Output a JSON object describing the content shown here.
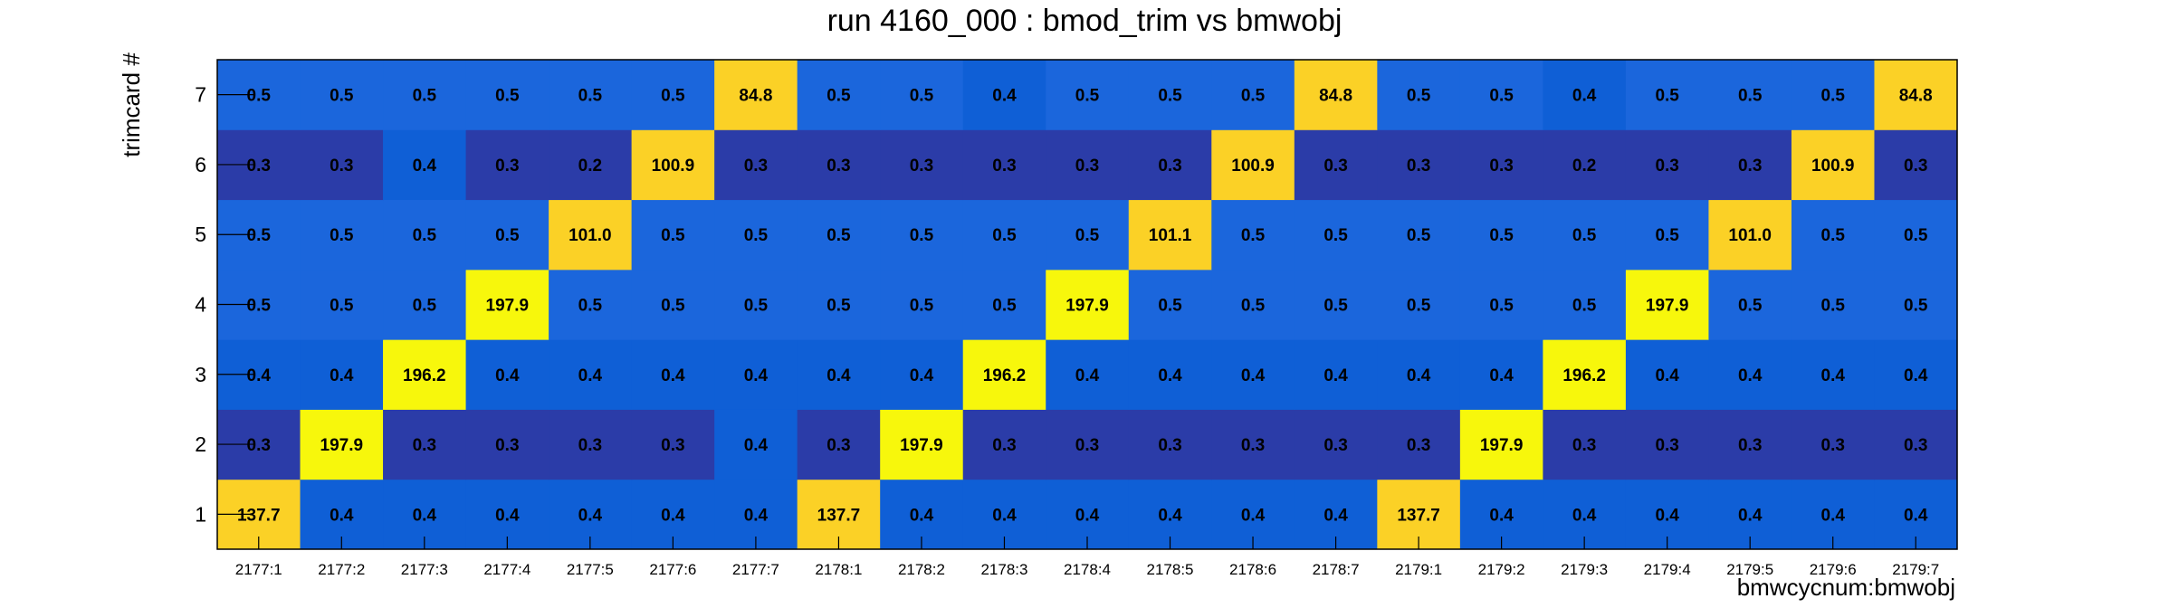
{
  "chart_data": {
    "type": "heatmap",
    "title": "run 4160_000 : bmod_trim vs bmwobj",
    "xlabel": "bmwcycnum:bmwobj",
    "ylabel": "trimcard #",
    "x_categories": [
      "2177:1",
      "2177:2",
      "2177:3",
      "2177:4",
      "2177:5",
      "2177:6",
      "2177:7",
      "2178:1",
      "2178:2",
      "2178:3",
      "2178:4",
      "2178:5",
      "2178:6",
      "2178:7",
      "2179:1",
      "2179:2",
      "2179:3",
      "2179:4",
      "2179:5",
      "2179:6",
      "2179:7"
    ],
    "y_categories": [
      "1",
      "2",
      "3",
      "4",
      "5",
      "6",
      "7"
    ],
    "values": [
      [
        "137.7",
        "0.4",
        "0.4",
        "0.4",
        "0.4",
        "0.4",
        "0.4",
        "137.7",
        "0.4",
        "0.4",
        "0.4",
        "0.4",
        "0.4",
        "0.4",
        "137.7",
        "0.4",
        "0.4",
        "0.4",
        "0.4",
        "0.4",
        "0.4"
      ],
      [
        "0.3",
        "197.9",
        "0.3",
        "0.3",
        "0.3",
        "0.3",
        "0.4",
        "0.3",
        "197.9",
        "0.3",
        "0.3",
        "0.3",
        "0.3",
        "0.3",
        "0.3",
        "197.9",
        "0.3",
        "0.3",
        "0.3",
        "0.3",
        "0.3"
      ],
      [
        "0.4",
        "0.4",
        "196.2",
        "0.4",
        "0.4",
        "0.4",
        "0.4",
        "0.4",
        "0.4",
        "196.2",
        "0.4",
        "0.4",
        "0.4",
        "0.4",
        "0.4",
        "0.4",
        "196.2",
        "0.4",
        "0.4",
        "0.4",
        "0.4"
      ],
      [
        "0.5",
        "0.5",
        "0.5",
        "197.9",
        "0.5",
        "0.5",
        "0.5",
        "0.5",
        "0.5",
        "0.5",
        "197.9",
        "0.5",
        "0.5",
        "0.5",
        "0.5",
        "0.5",
        "0.5",
        "197.9",
        "0.5",
        "0.5",
        "0.5"
      ],
      [
        "0.5",
        "0.5",
        "0.5",
        "0.5",
        "101.0",
        "0.5",
        "0.5",
        "0.5",
        "0.5",
        "0.5",
        "0.5",
        "101.1",
        "0.5",
        "0.5",
        "0.5",
        "0.5",
        "0.5",
        "0.5",
        "101.0",
        "0.5",
        "0.5"
      ],
      [
        "0.3",
        "0.3",
        "0.4",
        "0.3",
        "0.2",
        "100.9",
        "0.3",
        "0.3",
        "0.3",
        "0.3",
        "0.3",
        "0.3",
        "100.9",
        "0.3",
        "0.3",
        "0.3",
        "0.2",
        "0.3",
        "0.3",
        "100.9",
        "0.3"
      ],
      [
        "0.5",
        "0.5",
        "0.5",
        "0.5",
        "0.5",
        "0.5",
        "84.8",
        "0.5",
        "0.5",
        "0.4",
        "0.5",
        "0.5",
        "0.5",
        "84.8",
        "0.5",
        "0.5",
        "0.4",
        "0.5",
        "0.5",
        "0.5",
        "84.8"
      ]
    ],
    "palette": {
      "high": "#f7f70c",
      "upper": "#fbd126",
      "mid_low": "#1b66dc",
      "low": "#0f5fd6",
      "dark": "#2b3ca8",
      "border": "#000000"
    }
  }
}
